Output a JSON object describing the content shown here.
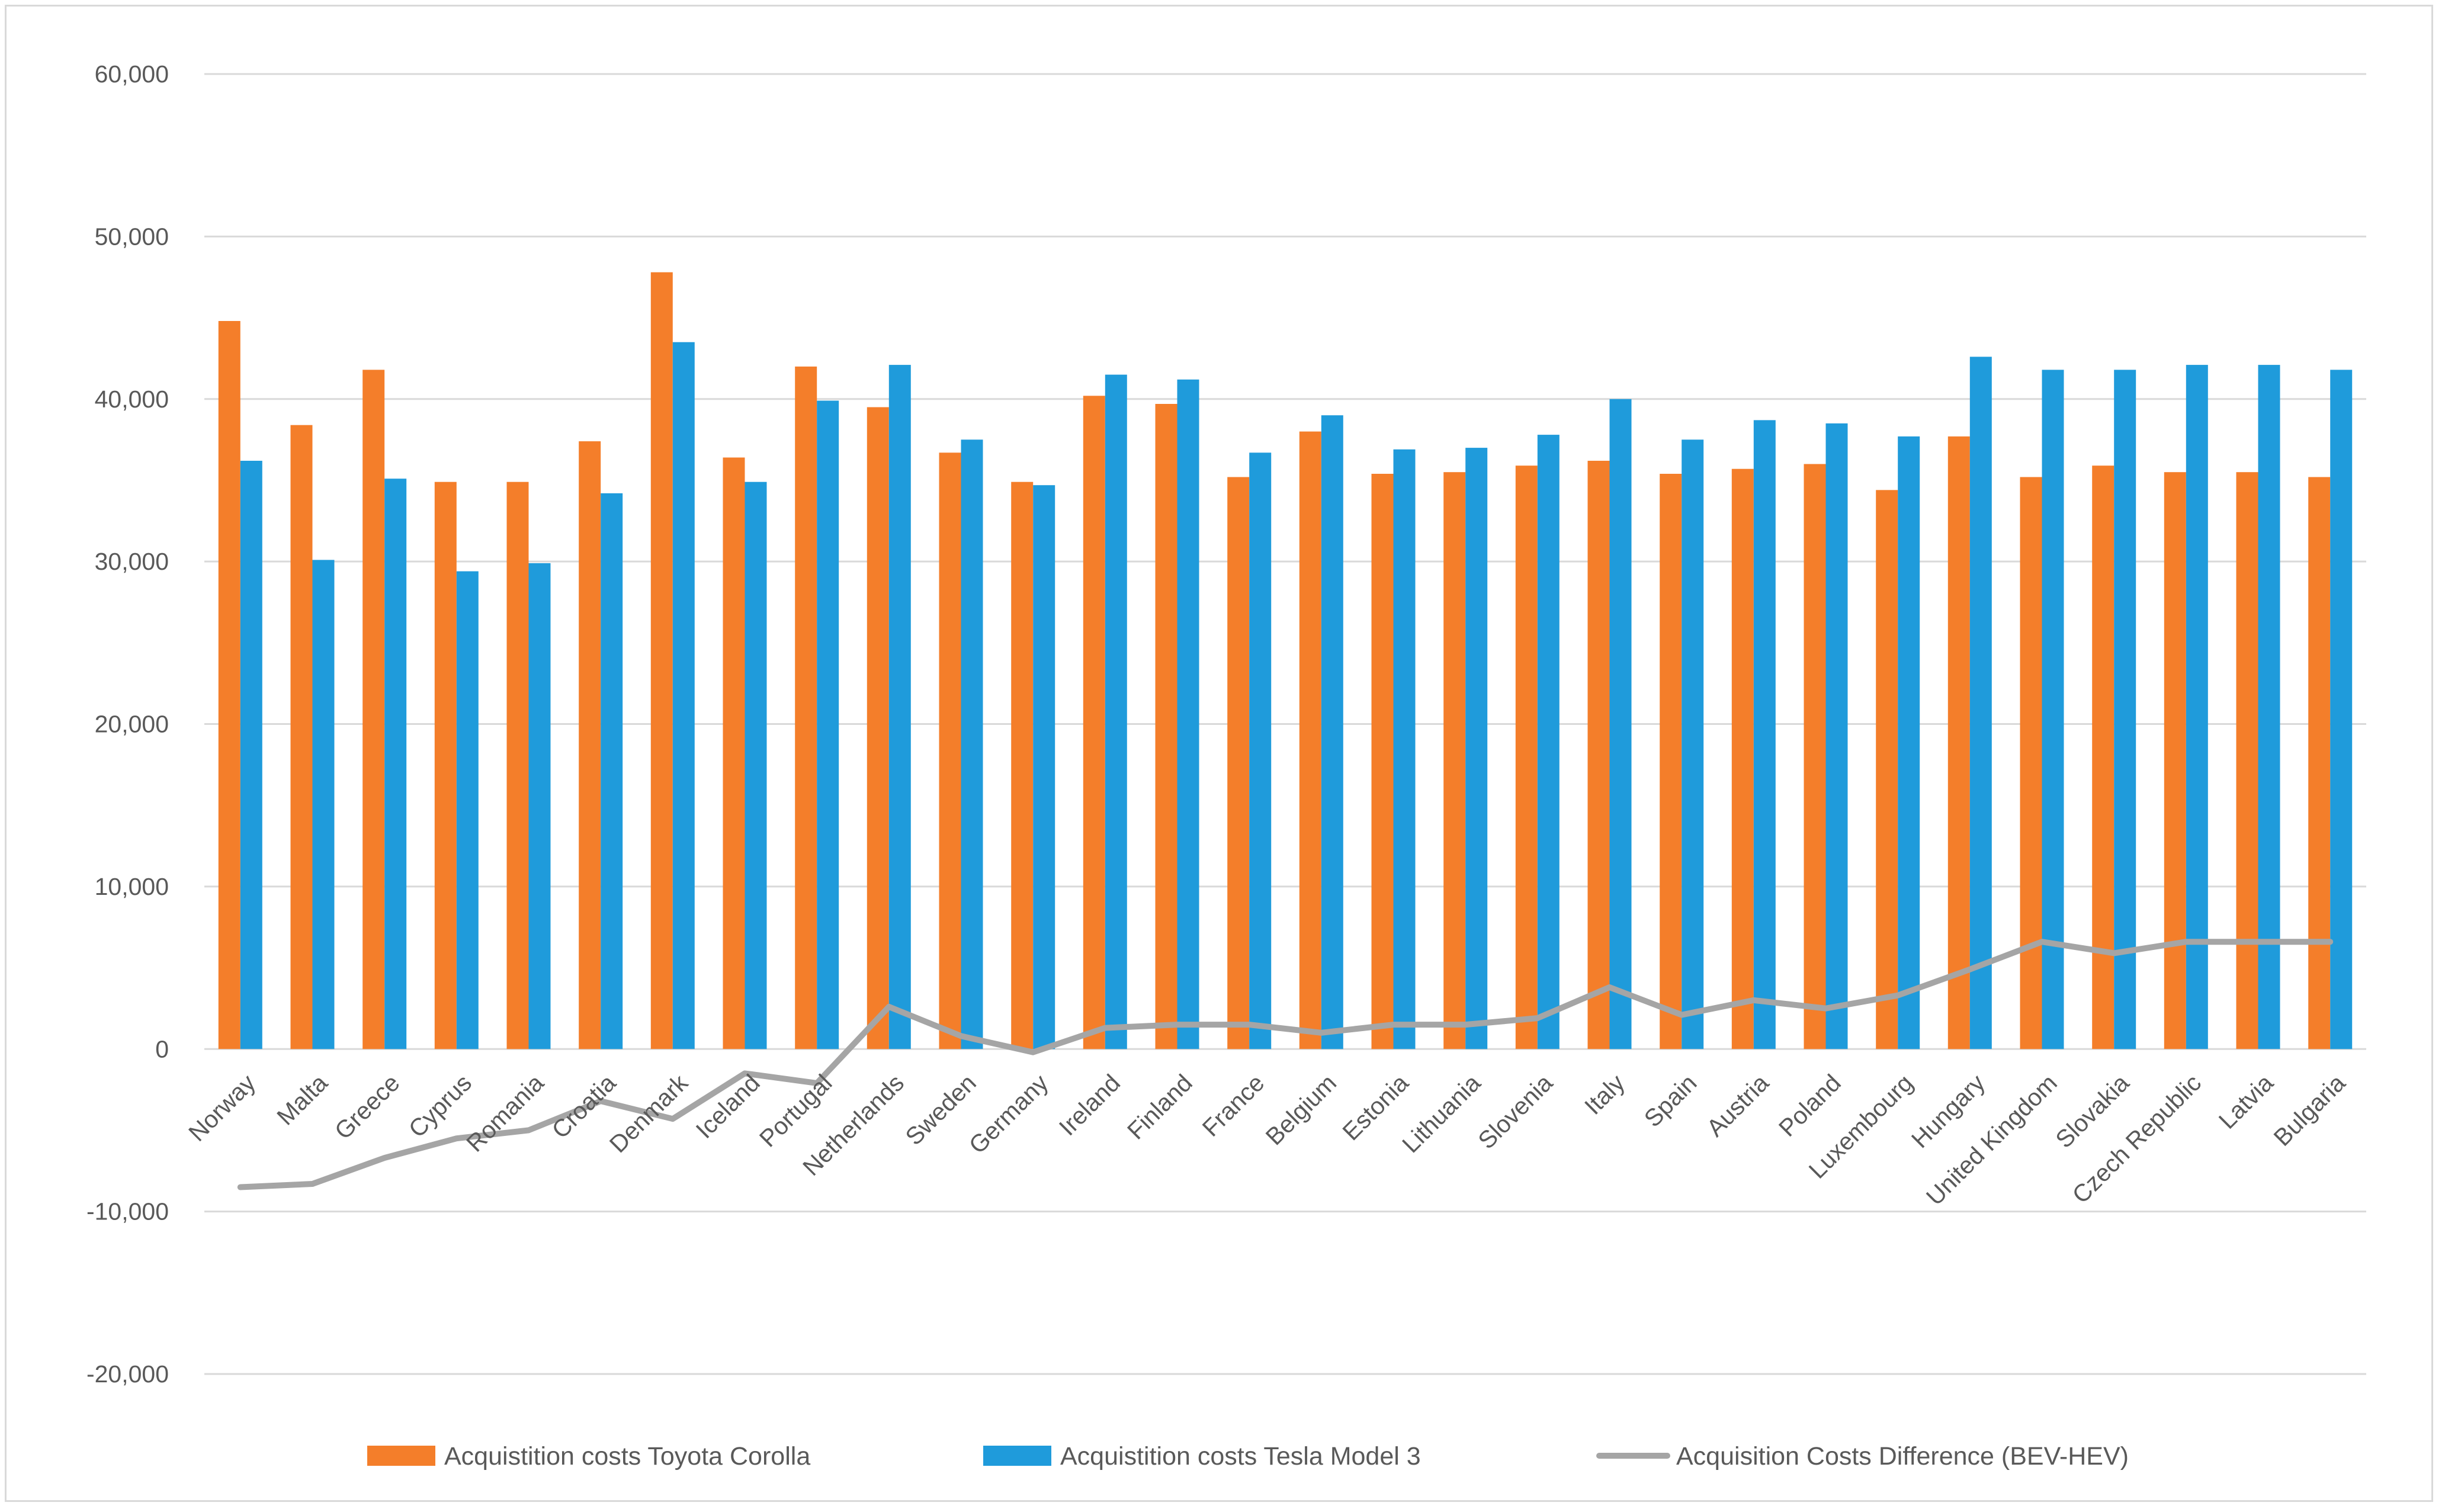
{
  "chart_data": {
    "type": "bar",
    "title": "",
    "xlabel": "",
    "ylabel": "",
    "ylim": [
      -20000,
      60000
    ],
    "yticks": [
      60000,
      50000,
      40000,
      30000,
      20000,
      10000,
      0,
      -10000,
      -20000
    ],
    "ytick_labels": [
      "60,000",
      "50,000",
      "40,000",
      "30,000",
      "20,000",
      "10,000",
      "0",
      "-10,000",
      "-20,000"
    ],
    "grid": true,
    "legend_position": "bottom",
    "categories": [
      "Norway",
      "Malta",
      "Greece",
      "Cyprus",
      "Romania",
      "Croatia",
      "Denmark",
      "Iceland",
      "Portugal",
      "Netherlands",
      "Sweden",
      "Germany",
      "Ireland",
      "Finland",
      "France",
      "Belgium",
      "Estonia",
      "Lithuania",
      "Slovenia",
      "Italy",
      "Spain",
      "Austria",
      "Poland",
      "Luxembourg",
      "Hungary",
      "United Kingdom",
      "Slovakia",
      "Czech Republic",
      "Latvia",
      "Bulgaria"
    ],
    "series": [
      {
        "name": "Acquistition costs Toyota Corolla",
        "kind": "bar",
        "color": "#F47E2A",
        "values": [
          44800,
          38400,
          41800,
          34900,
          34900,
          37400,
          47800,
          36400,
          42000,
          39500,
          36700,
          34900,
          40200,
          39700,
          35200,
          38000,
          35400,
          35500,
          35900,
          36200,
          35400,
          35700,
          36000,
          34400,
          37700,
          35200,
          35900,
          35500,
          35500,
          35200
        ]
      },
      {
        "name": "Acquistition costs Tesla Model 3",
        "kind": "bar",
        "color": "#1F9BDB",
        "values": [
          36200,
          30100,
          35100,
          29400,
          29900,
          34200,
          43500,
          34900,
          39900,
          42100,
          37500,
          34700,
          41500,
          41200,
          36700,
          39000,
          36900,
          37000,
          37800,
          40000,
          37500,
          38700,
          38500,
          37700,
          42600,
          41800,
          41800,
          42100,
          42100,
          41800
        ]
      },
      {
        "name": "Acquisition Costs Difference (BEV-HEV)",
        "kind": "line",
        "color": "#A5A5A5",
        "values": [
          -8500,
          -8300,
          -6700,
          -5500,
          -5000,
          -3200,
          -4300,
          -1500,
          -2100,
          2600,
          800,
          -200,
          1300,
          1500,
          1500,
          1000,
          1500,
          1500,
          1900,
          3800,
          2100,
          3000,
          2500,
          3300,
          4900,
          6600,
          5900,
          6600,
          6600,
          6600
        ]
      }
    ]
  }
}
